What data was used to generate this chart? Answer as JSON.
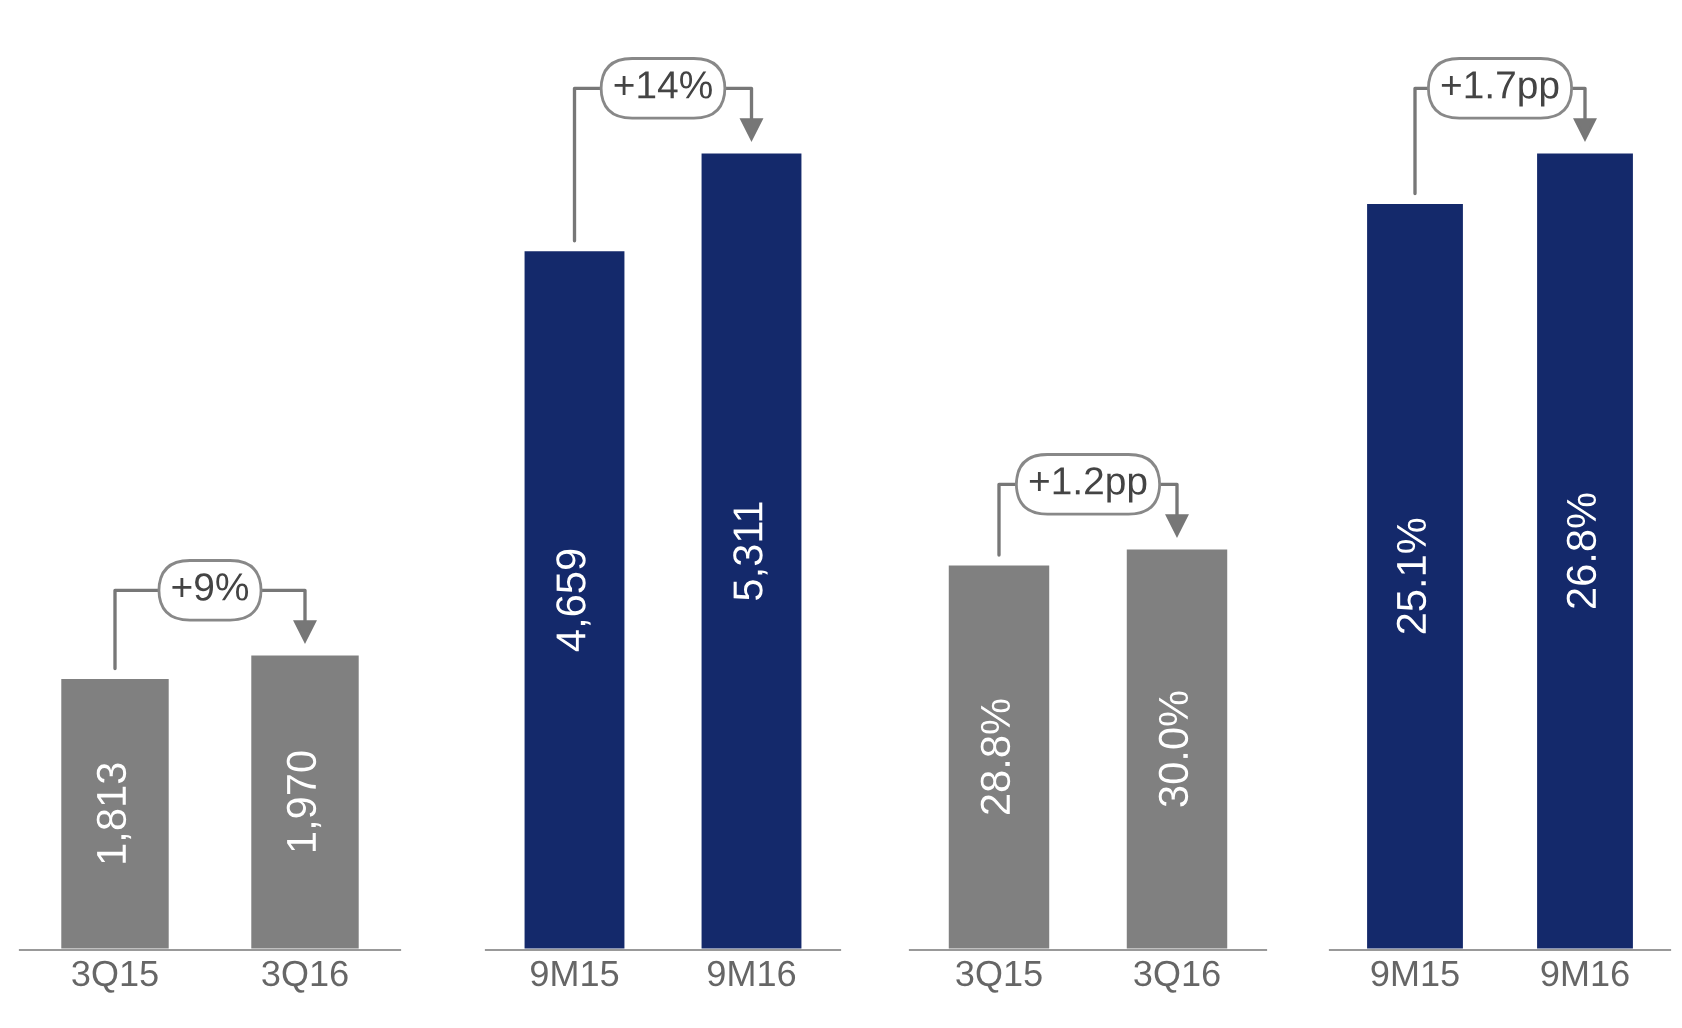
{
  "chart_data": [
    {
      "type": "bar",
      "categories": [
        "3Q15",
        "3Q16"
      ],
      "values": [
        1813,
        1970
      ],
      "value_labels": [
        "1,813",
        "1,970"
      ],
      "colors": [
        "#808080",
        "#808080"
      ],
      "tick_labels": "x",
      "annotations": [
        "+9%"
      ]
    },
    {
      "type": "bar",
      "categories": [
        "9M15",
        "9M16"
      ],
      "values": [
        4659,
        5311
      ],
      "value_labels": [
        "4,659",
        "5,311"
      ],
      "colors": [
        "#14296b",
        "#14296b"
      ],
      "tick_labels": "x",
      "annotations": [
        "+14%"
      ]
    },
    {
      "type": "bar",
      "categories": [
        "3Q15",
        "3Q16"
      ],
      "values": [
        28.8,
        30.0
      ],
      "value_labels": [
        "28.8%",
        "30.0%"
      ],
      "colors": [
        "#808080",
        "#808080"
      ],
      "tick_labels": "x",
      "annotations": [
        "+1.2pp"
      ]
    },
    {
      "type": "bar",
      "categories": [
        "9M15",
        "9M16"
      ],
      "values": [
        25.1,
        26.8
      ],
      "value_labels": [
        "25.1%",
        "26.8%"
      ],
      "colors": [
        "#14296b",
        "#14296b"
      ],
      "tick_labels": "x",
      "annotations": [
        "+1.7pp"
      ]
    }
  ]
}
